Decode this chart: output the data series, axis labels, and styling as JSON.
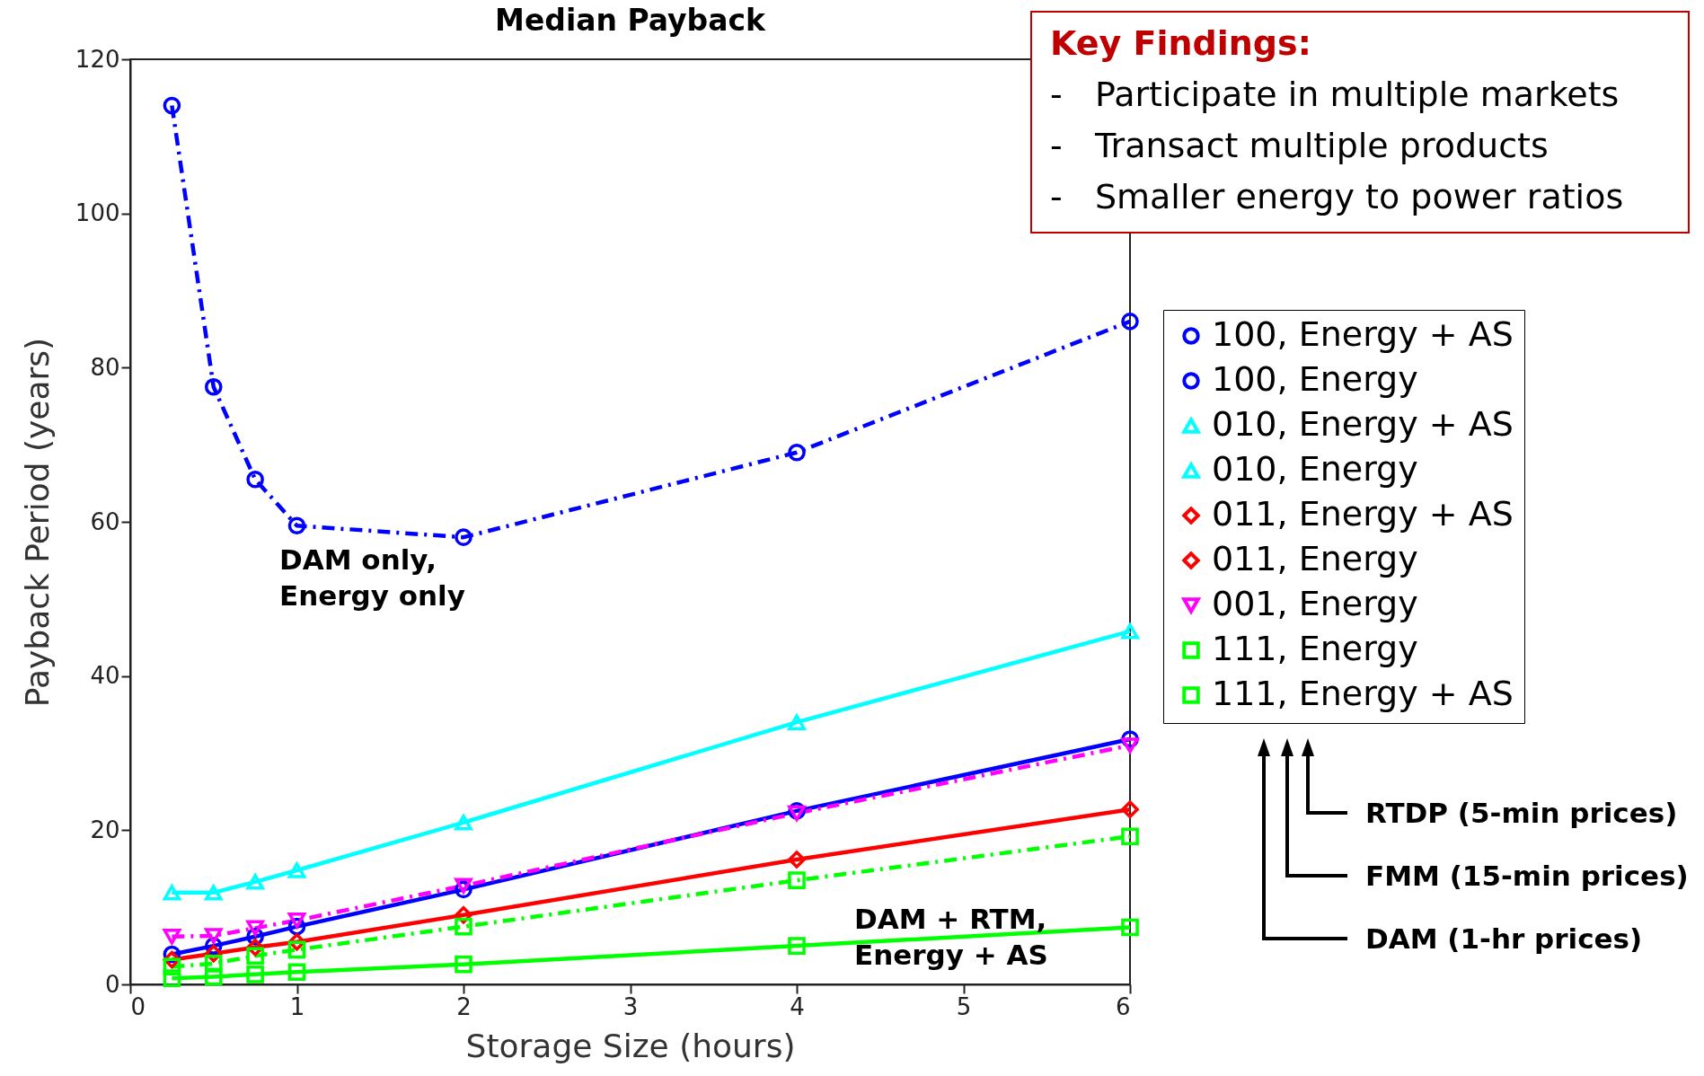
{
  "chart_data": {
    "type": "line",
    "title": "Median Payback",
    "xlabel": "Storage Size (hours)",
    "ylabel": "Payback Period (years)",
    "x": [
      0.25,
      0.5,
      0.75,
      1,
      2,
      4,
      6
    ],
    "xlim": [
      0,
      6
    ],
    "xticks": [
      0,
      1,
      2,
      3,
      4,
      5,
      6
    ],
    "ylim": [
      0,
      120
    ],
    "yticks": [
      0,
      20,
      40,
      60,
      80,
      100,
      120
    ],
    "grid": false,
    "legend": "right",
    "series": [
      {
        "name": "100, Energy + AS",
        "color": "#0000ff",
        "marker": "circle",
        "line_style": "solid",
        "values": [
          3.9,
          5,
          6.2,
          7.5,
          12.3,
          22.5,
          31.8
        ]
      },
      {
        "name": "100, Energy",
        "color": "#0000ff",
        "marker": "circle",
        "line_style": "dashed",
        "values": [
          114,
          77.5,
          65.5,
          59.5,
          58,
          69,
          86
        ]
      },
      {
        "name": "010, Energy + AS",
        "color": "#00ffff",
        "marker": "triangle",
        "line_style": "solid",
        "values": [
          11.9,
          11.9,
          13.3,
          14.8,
          21,
          34,
          45.8
        ]
      },
      {
        "name": "010, Energy",
        "color": "#00ffff",
        "marker": "triangle",
        "line_style": "dashed",
        "values": [
          null,
          null,
          null,
          null,
          null,
          null,
          null
        ]
      },
      {
        "name": "011, Energy + AS",
        "color": "#ff0000",
        "marker": "diamond",
        "line_style": "solid",
        "values": [
          3.2,
          4,
          4.8,
          5.5,
          9,
          16.2,
          22.7
        ]
      },
      {
        "name": "011, Energy",
        "color": "#ff0000",
        "marker": "diamond",
        "line_style": "dashed",
        "values": [
          null,
          null,
          null,
          null,
          null,
          null,
          null
        ]
      },
      {
        "name": "001, Energy",
        "color": "#ff00ff",
        "marker": "triangle-down",
        "line_style": "dashed",
        "values": [
          6.2,
          6.3,
          7.3,
          8.3,
          12.8,
          22.2,
          31
        ]
      },
      {
        "name": "111, Energy",
        "color": "#00ff00",
        "marker": "square",
        "line_style": "dashed",
        "values": [
          2.3,
          2.7,
          3.7,
          4.5,
          7.5,
          13.5,
          19.2
        ]
      },
      {
        "name": "111, Energy + AS",
        "color": "#00ff00",
        "marker": "square",
        "line_style": "solid",
        "values": [
          0.8,
          1,
          1.3,
          1.6,
          2.6,
          5,
          7.4
        ]
      }
    ],
    "annotations": [
      "Key Findings:",
      "-   Participate in multiple markets",
      "-   Transact multiple products",
      "-   Smaller energy to power ratios",
      "DAM only,\nEnergy only",
      "DAM + RTM,\nEnergy + AS",
      "RTDP (5-min prices)",
      "FMM (15-min prices)",
      "DAM (1-hr prices)"
    ]
  }
}
